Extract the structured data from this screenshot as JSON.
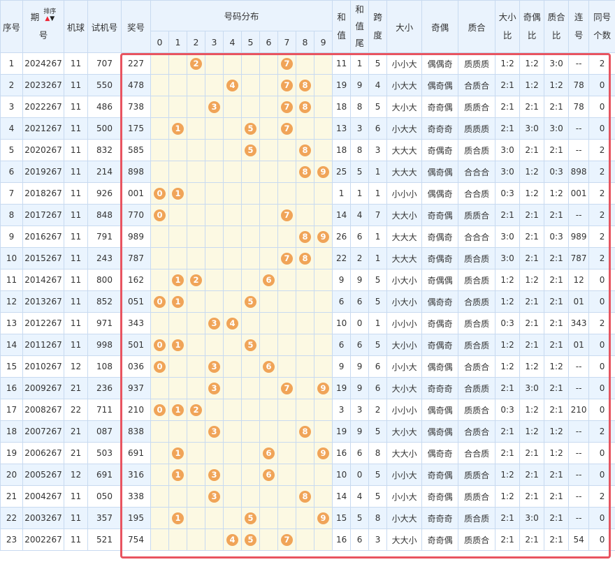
{
  "headers": {
    "seq": "序号",
    "issue_a": "期",
    "issue_b": "号",
    "sort": "排序",
    "machine": "机球",
    "trial": "试机号",
    "prize": "奖号",
    "dist": "号码分布",
    "digits": [
      "0",
      "1",
      "2",
      "3",
      "4",
      "5",
      "6",
      "7",
      "8",
      "9"
    ],
    "sum_a": "和",
    "sum_b": "值",
    "sumtail_a": "和",
    "sumtail_b": "值",
    "sumtail_c": "尾",
    "span_a": "跨",
    "span_b": "度",
    "bigsmall": "大小",
    "oddeven": "奇偶",
    "primecomp": "质合",
    "bs_ratio_a": "大小",
    "bs_ratio_b": "比",
    "oe_ratio_a": "奇偶",
    "oe_ratio_b": "比",
    "pc_ratio_a": "质合",
    "pc_ratio_b": "比",
    "consec_a": "连",
    "consec_b": "号",
    "same_a": "同号",
    "same_b": "个数"
  },
  "rows": [
    {
      "seq": "1",
      "issue": "2024267",
      "machine": "11",
      "trial": "707",
      "prize": "227",
      "sum": "11",
      "tail": "1",
      "span": "5",
      "bs": "小小大",
      "oe": "偶偶奇",
      "pc": "质质质",
      "bsr": "1:2",
      "oer": "1:2",
      "pcr": "3:0",
      "consec": "--",
      "same": "2"
    },
    {
      "seq": "2",
      "issue": "2023267",
      "machine": "11",
      "trial": "550",
      "prize": "478",
      "sum": "19",
      "tail": "9",
      "span": "4",
      "bs": "小大大",
      "oe": "偶奇偶",
      "pc": "合质合",
      "bsr": "2:1",
      "oer": "1:2",
      "pcr": "1:2",
      "consec": "78",
      "same": "0"
    },
    {
      "seq": "3",
      "issue": "2022267",
      "machine": "11",
      "trial": "486",
      "prize": "738",
      "sum": "18",
      "tail": "8",
      "span": "5",
      "bs": "大小大",
      "oe": "奇奇偶",
      "pc": "质质合",
      "bsr": "2:1",
      "oer": "2:1",
      "pcr": "2:1",
      "consec": "78",
      "same": "0"
    },
    {
      "seq": "4",
      "issue": "2021267",
      "machine": "11",
      "trial": "500",
      "prize": "175",
      "sum": "13",
      "tail": "3",
      "span": "6",
      "bs": "小大大",
      "oe": "奇奇奇",
      "pc": "质质质",
      "bsr": "2:1",
      "oer": "3:0",
      "pcr": "3:0",
      "consec": "--",
      "same": "0"
    },
    {
      "seq": "5",
      "issue": "2020267",
      "machine": "11",
      "trial": "832",
      "prize": "585",
      "sum": "18",
      "tail": "8",
      "span": "3",
      "bs": "大大大",
      "oe": "奇偶奇",
      "pc": "质合质",
      "bsr": "3:0",
      "oer": "2:1",
      "pcr": "2:1",
      "consec": "--",
      "same": "2"
    },
    {
      "seq": "6",
      "issue": "2019267",
      "machine": "11",
      "trial": "214",
      "prize": "898",
      "sum": "25",
      "tail": "5",
      "span": "1",
      "bs": "大大大",
      "oe": "偶奇偶",
      "pc": "合合合",
      "bsr": "3:0",
      "oer": "1:2",
      "pcr": "0:3",
      "consec": "898",
      "same": "2"
    },
    {
      "seq": "7",
      "issue": "2018267",
      "machine": "11",
      "trial": "926",
      "prize": "001",
      "sum": "1",
      "tail": "1",
      "span": "1",
      "bs": "小小小",
      "oe": "偶偶奇",
      "pc": "合合质",
      "bsr": "0:3",
      "oer": "1:2",
      "pcr": "1:2",
      "consec": "001",
      "same": "2"
    },
    {
      "seq": "8",
      "issue": "2017267",
      "machine": "11",
      "trial": "848",
      "prize": "770",
      "sum": "14",
      "tail": "4",
      "span": "7",
      "bs": "大大小",
      "oe": "奇奇偶",
      "pc": "质质合",
      "bsr": "2:1",
      "oer": "2:1",
      "pcr": "2:1",
      "consec": "--",
      "same": "2"
    },
    {
      "seq": "9",
      "issue": "2016267",
      "machine": "11",
      "trial": "791",
      "prize": "989",
      "sum": "26",
      "tail": "6",
      "span": "1",
      "bs": "大大大",
      "oe": "奇偶奇",
      "pc": "合合合",
      "bsr": "3:0",
      "oer": "2:1",
      "pcr": "0:3",
      "consec": "989",
      "same": "2"
    },
    {
      "seq": "10",
      "issue": "2015267",
      "machine": "11",
      "trial": "243",
      "prize": "787",
      "sum": "22",
      "tail": "2",
      "span": "1",
      "bs": "大大大",
      "oe": "奇偶奇",
      "pc": "质合质",
      "bsr": "3:0",
      "oer": "2:1",
      "pcr": "2:1",
      "consec": "787",
      "same": "2"
    },
    {
      "seq": "11",
      "issue": "2014267",
      "machine": "11",
      "trial": "800",
      "prize": "162",
      "sum": "9",
      "tail": "9",
      "span": "5",
      "bs": "小大小",
      "oe": "奇偶偶",
      "pc": "质合质",
      "bsr": "1:2",
      "oer": "1:2",
      "pcr": "2:1",
      "consec": "12",
      "same": "0"
    },
    {
      "seq": "12",
      "issue": "2013267",
      "machine": "11",
      "trial": "852",
      "prize": "051",
      "sum": "6",
      "tail": "6",
      "span": "5",
      "bs": "小大小",
      "oe": "偶奇奇",
      "pc": "合质质",
      "bsr": "1:2",
      "oer": "2:1",
      "pcr": "2:1",
      "consec": "01",
      "same": "0"
    },
    {
      "seq": "13",
      "issue": "2012267",
      "machine": "11",
      "trial": "971",
      "prize": "343",
      "sum": "10",
      "tail": "0",
      "span": "1",
      "bs": "小小小",
      "oe": "奇偶奇",
      "pc": "质合质",
      "bsr": "0:3",
      "oer": "2:1",
      "pcr": "2:1",
      "consec": "343",
      "same": "2"
    },
    {
      "seq": "14",
      "issue": "2011267",
      "machine": "11",
      "trial": "998",
      "prize": "501",
      "sum": "6",
      "tail": "6",
      "span": "5",
      "bs": "大小小",
      "oe": "奇偶奇",
      "pc": "质合质",
      "bsr": "1:2",
      "oer": "2:1",
      "pcr": "2:1",
      "consec": "01",
      "same": "0"
    },
    {
      "seq": "15",
      "issue": "2010267",
      "machine": "12",
      "trial": "108",
      "prize": "036",
      "sum": "9",
      "tail": "9",
      "span": "6",
      "bs": "小小大",
      "oe": "偶奇偶",
      "pc": "合质合",
      "bsr": "1:2",
      "oer": "1:2",
      "pcr": "1:2",
      "consec": "--",
      "same": "0"
    },
    {
      "seq": "16",
      "issue": "2009267",
      "machine": "21",
      "trial": "236",
      "prize": "937",
      "sum": "19",
      "tail": "9",
      "span": "6",
      "bs": "大小大",
      "oe": "奇奇奇",
      "pc": "合质质",
      "bsr": "2:1",
      "oer": "3:0",
      "pcr": "2:1",
      "consec": "--",
      "same": "0"
    },
    {
      "seq": "17",
      "issue": "2008267",
      "machine": "22",
      "trial": "711",
      "prize": "210",
      "sum": "3",
      "tail": "3",
      "span": "2",
      "bs": "小小小",
      "oe": "偶奇偶",
      "pc": "质质合",
      "bsr": "0:3",
      "oer": "1:2",
      "pcr": "2:1",
      "consec": "210",
      "same": "0"
    },
    {
      "seq": "18",
      "issue": "2007267",
      "machine": "21",
      "trial": "087",
      "prize": "838",
      "sum": "19",
      "tail": "9",
      "span": "5",
      "bs": "大小大",
      "oe": "偶奇偶",
      "pc": "合质合",
      "bsr": "2:1",
      "oer": "1:2",
      "pcr": "1:2",
      "consec": "--",
      "same": "2"
    },
    {
      "seq": "19",
      "issue": "2006267",
      "machine": "21",
      "trial": "503",
      "prize": "691",
      "sum": "16",
      "tail": "6",
      "span": "8",
      "bs": "大大小",
      "oe": "偶奇奇",
      "pc": "合合质",
      "bsr": "2:1",
      "oer": "2:1",
      "pcr": "1:2",
      "consec": "--",
      "same": "0"
    },
    {
      "seq": "20",
      "issue": "2005267",
      "machine": "12",
      "trial": "691",
      "prize": "316",
      "sum": "10",
      "tail": "0",
      "span": "5",
      "bs": "小小大",
      "oe": "奇奇偶",
      "pc": "质质合",
      "bsr": "1:2",
      "oer": "2:1",
      "pcr": "2:1",
      "consec": "--",
      "same": "0"
    },
    {
      "seq": "21",
      "issue": "2004267",
      "machine": "11",
      "trial": "050",
      "prize": "338",
      "sum": "14",
      "tail": "4",
      "span": "5",
      "bs": "小小大",
      "oe": "奇奇偶",
      "pc": "质质合",
      "bsr": "1:2",
      "oer": "2:1",
      "pcr": "2:1",
      "consec": "--",
      "same": "2"
    },
    {
      "seq": "22",
      "issue": "2003267",
      "machine": "11",
      "trial": "357",
      "prize": "195",
      "sum": "15",
      "tail": "5",
      "span": "8",
      "bs": "小大大",
      "oe": "奇奇奇",
      "pc": "质合质",
      "bsr": "2:1",
      "oer": "3:0",
      "pcr": "2:1",
      "consec": "--",
      "same": "0"
    },
    {
      "seq": "23",
      "issue": "2002267",
      "machine": "11",
      "trial": "521",
      "prize": "754",
      "sum": "16",
      "tail": "6",
      "span": "3",
      "bs": "大大小",
      "oe": "奇奇偶",
      "pc": "质质合",
      "bsr": "2:1",
      "oer": "2:1",
      "pcr": "2:1",
      "consec": "54",
      "same": "0"
    }
  ],
  "colors": {
    "ball": "#f0a458",
    "highlight": "#e85460",
    "header_bg": "#eaf3fd",
    "dist_bg": "#fcf9e3"
  }
}
